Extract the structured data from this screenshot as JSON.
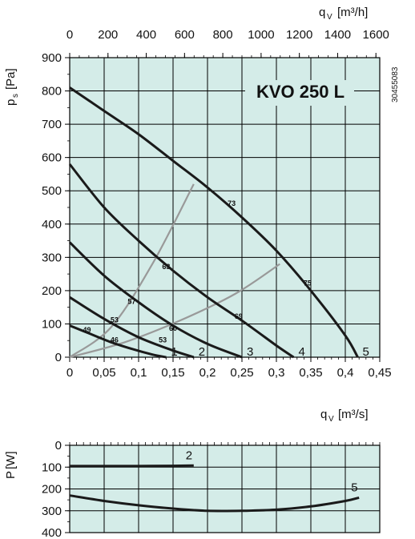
{
  "chart_data": [
    {
      "type": "line",
      "title": "KVO 250 L",
      "code": "30455083",
      "xlabel": "q",
      "xlabel_sub": "V",
      "xlabel_unit": "[m³/s]",
      "x2label": "q",
      "x2label_sub": "V",
      "x2label_unit": "[m³/h]",
      "ylabel": "p",
      "ylabel_sub": "s",
      "ylabel_unit": "[Pa]",
      "xlim": [
        0,
        0.45
      ],
      "x2lim": [
        0,
        1620
      ],
      "ylim": [
        0,
        900
      ],
      "xticks": [
        "0",
        "0,05",
        "0,1",
        "0,15",
        "0,2",
        "0,25",
        "0,3",
        "0,35",
        "0,4",
        "0,45"
      ],
      "x2ticks": [
        "0",
        "200",
        "400",
        "600",
        "800",
        "1000",
        "1200",
        "1400",
        "1600"
      ],
      "yticks": [
        "0",
        "100",
        "200",
        "300",
        "400",
        "500",
        "600",
        "700",
        "800",
        "900"
      ],
      "grid": true,
      "series": [
        {
          "name": "1",
          "x": [
            0,
            0.03,
            0.06,
            0.09,
            0.12,
            0.14
          ],
          "y": [
            95,
            70,
            45,
            25,
            8,
            0
          ]
        },
        {
          "name": "2",
          "x": [
            0,
            0.05,
            0.1,
            0.15,
            0.18
          ],
          "y": [
            180,
            115,
            60,
            20,
            0
          ]
        },
        {
          "name": "3",
          "x": [
            0,
            0.05,
            0.1,
            0.15,
            0.2,
            0.25
          ],
          "y": [
            345,
            245,
            165,
            95,
            40,
            0
          ]
        },
        {
          "name": "4",
          "x": [
            0,
            0.05,
            0.1,
            0.15,
            0.2,
            0.25,
            0.3,
            0.325
          ],
          "y": [
            580,
            450,
            350,
            260,
            180,
            110,
            35,
            0
          ]
        },
        {
          "name": "5",
          "x": [
            0,
            0.05,
            0.1,
            0.15,
            0.2,
            0.25,
            0.3,
            0.35,
            0.4,
            0.418
          ],
          "y": [
            810,
            740,
            670,
            590,
            510,
            420,
            320,
            200,
            65,
            0
          ]
        }
      ],
      "efficiency_lines": [
        {
          "x": [
            0,
            0.06,
            0.12,
            0.18
          ],
          "y": [
            0,
            90,
            280,
            520
          ]
        },
        {
          "x": [
            0,
            0.08,
            0.16,
            0.24,
            0.305
          ],
          "y": [
            0,
            45,
            110,
            190,
            280
          ]
        }
      ],
      "annotations": [
        {
          "text": "73",
          "x": 0.235,
          "y": 455
        },
        {
          "text": "75",
          "x": 0.345,
          "y": 215
        },
        {
          "text": "63",
          "x": 0.14,
          "y": 265
        },
        {
          "text": "69",
          "x": 0.245,
          "y": 115
        },
        {
          "text": "57",
          "x": 0.09,
          "y": 160
        },
        {
          "text": "60",
          "x": 0.15,
          "y": 80
        },
        {
          "text": "53",
          "x": 0.065,
          "y": 105
        },
        {
          "text": "53",
          "x": 0.135,
          "y": 45
        },
        {
          "text": "49",
          "x": 0.025,
          "y": 75
        },
        {
          "text": "46",
          "x": 0.065,
          "y": 45
        }
      ]
    },
    {
      "type": "line",
      "ylabel": "P",
      "ylabel_unit": "[W]",
      "xlim": [
        0,
        0.45
      ],
      "ylim": [
        0,
        400
      ],
      "yticks": [
        "0",
        "100",
        "200",
        "300",
        "400"
      ],
      "y_inverted": true,
      "grid": true,
      "series": [
        {
          "name": "2",
          "x": [
            0,
            0.05,
            0.1,
            0.15,
            0.18
          ],
          "y": [
            95,
            95,
            95,
            94,
            93
          ]
        },
        {
          "name": "5",
          "x": [
            0,
            0.05,
            0.1,
            0.15,
            0.2,
            0.25,
            0.3,
            0.35,
            0.4,
            0.42
          ],
          "y": [
            230,
            255,
            275,
            290,
            300,
            300,
            295,
            280,
            255,
            240
          ]
        }
      ]
    }
  ]
}
